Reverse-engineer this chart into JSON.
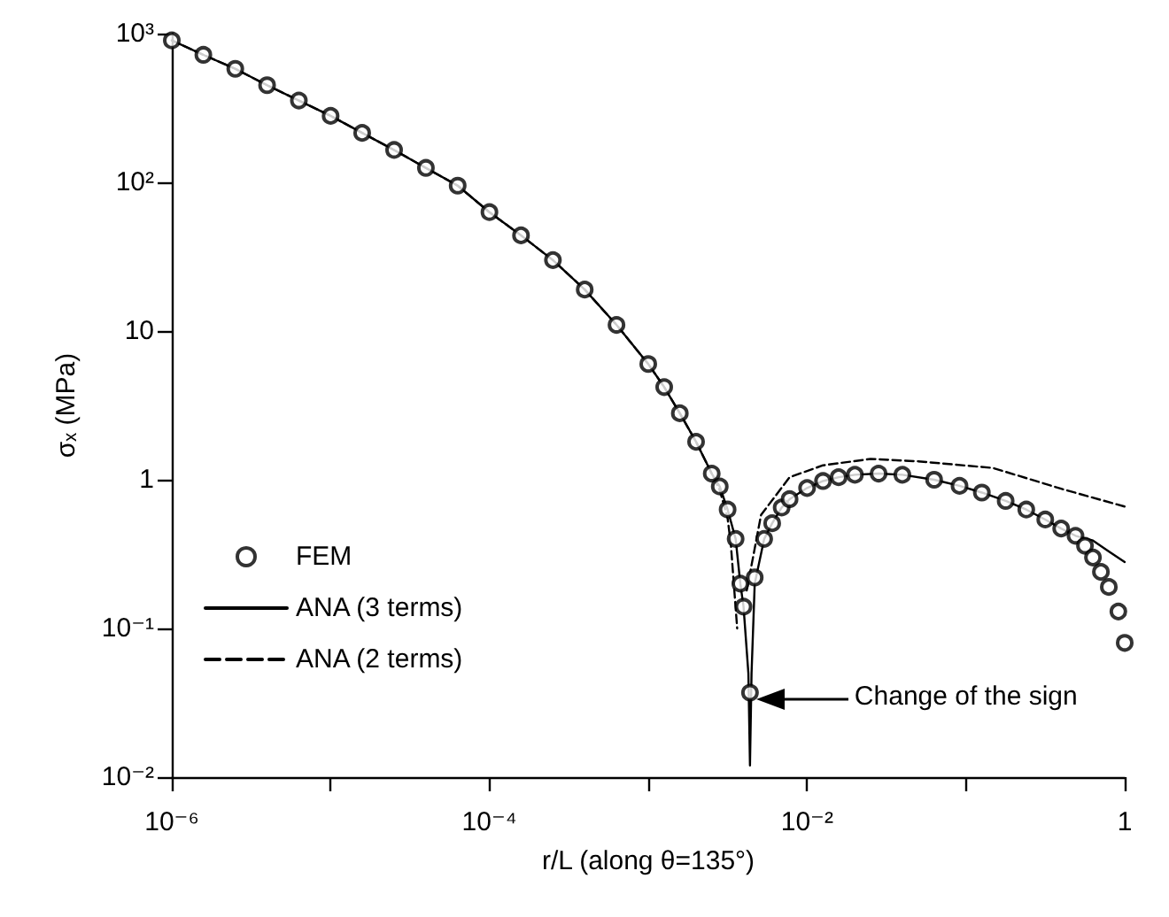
{
  "chart_data": {
    "type": "line",
    "xlabel": "r/L (along θ=135°)",
    "ylabel": "σₓ (MPa)",
    "log": "xy",
    "xlim": [
      1e-06,
      1
    ],
    "ylim": [
      0.01,
      1000
    ],
    "xticks": [
      {
        "value": 1e-06,
        "label": "10⁻⁶"
      },
      {
        "value": 1e-05,
        "label": null
      },
      {
        "value": 0.0001,
        "label": "10⁻⁴"
      },
      {
        "value": 0.001,
        "label": null
      },
      {
        "value": 0.01,
        "label": "10⁻²"
      },
      {
        "value": 0.1,
        "label": null
      },
      1
    ],
    "yticks": [
      {
        "value": 0.01,
        "label": "10⁻²"
      },
      {
        "value": 0.1,
        "label": "10⁻¹"
      },
      1,
      10,
      {
        "value": 100,
        "label": "10²"
      },
      {
        "value": 1000,
        "label": "10³"
      }
    ],
    "grid": false,
    "legend": "bottom left",
    "annotations": [
      "Change of the sign"
    ],
    "series": [
      {
        "name": "FEM",
        "type": "scatter",
        "marker": "circle",
        "color": "#000000",
        "x": [
          1e-06,
          1.58e-06,
          2.51e-06,
          3.98e-06,
          6.31e-06,
          1e-05,
          1.58e-05,
          2.51e-05,
          3.98e-05,
          6.31e-05,
          0.0001,
          0.000158,
          0.000251,
          0.000398,
          0.000631,
          0.001,
          0.00126,
          0.00158,
          0.002,
          0.00251,
          0.00282,
          0.00316,
          0.00355,
          0.0038,
          0.00398,
          0.00437,
          0.00468,
          0.00537,
          0.00603,
          0.00692,
          0.00776,
          0.01,
          0.0126,
          0.0158,
          0.02,
          0.0282,
          0.0398,
          0.0631,
          0.0912,
          0.126,
          0.178,
          0.24,
          0.316,
          0.398,
          0.49,
          0.562,
          0.631,
          0.708,
          0.794,
          0.912,
          1
        ],
        "values": [
          900,
          720,
          580,
          450,
          355,
          280,
          215,
          165,
          125,
          95,
          63,
          44,
          30,
          19,
          11,
          6,
          4.2,
          2.8,
          1.8,
          1.1,
          0.9,
          0.63,
          0.4,
          0.2,
          0.14,
          0.037,
          0.22,
          0.4,
          0.51,
          0.65,
          0.74,
          0.88,
          0.98,
          1.04,
          1.08,
          1.1,
          1.08,
          1,
          0.91,
          0.82,
          0.72,
          0.63,
          0.54,
          0.47,
          0.42,
          0.36,
          0.3,
          0.24,
          0.19,
          0.13,
          0.08
        ]
      },
      {
        "name": "ANA (3 terms)",
        "marker": "none",
        "line_style": "solid",
        "color": "#000000",
        "x": [
          1e-06,
          1.58e-06,
          2.51e-06,
          3.98e-06,
          6.31e-06,
          1e-05,
          1.58e-05,
          2.51e-05,
          3.98e-05,
          6.31e-05,
          0.0001,
          0.000158,
          0.000251,
          0.000398,
          0.000631,
          0.001,
          0.00126,
          0.00158,
          0.002,
          0.00251,
          0.00282,
          0.00316,
          0.00355,
          0.0038,
          0.00398,
          0.00427,
          0.00437,
          0.00447,
          0.00468,
          0.00537,
          0.00603,
          0.00692,
          0.00776,
          0.01,
          0.0126,
          0.0158,
          0.02,
          0.0282,
          0.0398,
          0.0631,
          0.0912,
          0.126,
          0.178,
          0.24,
          0.316,
          0.398,
          0.49,
          0.631,
          0.794,
          1
        ],
        "values": [
          900,
          720,
          580,
          450,
          355,
          280,
          215,
          165,
          125,
          95,
          63,
          44,
          30,
          19,
          11,
          6,
          4.2,
          2.8,
          1.8,
          1.1,
          0.9,
          0.63,
          0.4,
          0.2,
          0.14,
          0.05,
          0.012,
          0.05,
          0.2,
          0.4,
          0.51,
          0.65,
          0.74,
          0.88,
          0.98,
          1.04,
          1.08,
          1.1,
          1.08,
          1,
          0.91,
          0.82,
          0.72,
          0.63,
          0.54,
          0.47,
          0.42,
          0.39,
          0.33,
          0.28
        ]
      },
      {
        "name": "ANA (2 terms)",
        "marker": "none",
        "line_style": "dashed",
        "color": "#000000",
        "x": [
          1e-06,
          1.58e-06,
          2.51e-06,
          3.98e-06,
          6.31e-06,
          1e-05,
          1.58e-05,
          2.51e-05,
          3.98e-05,
          6.31e-05,
          0.0001,
          0.000158,
          0.000251,
          0.000398,
          0.000631,
          0.001,
          0.00126,
          0.00158,
          0.002,
          0.00251,
          0.00282,
          0.00316,
          0.00331,
          0.00363,
          0.0039,
          0.00417,
          0.00513,
          0.00776,
          0.0126,
          0.0251,
          0.0501,
          0.148,
          0.398,
          1
        ],
        "values": [
          900,
          720,
          580,
          450,
          355,
          280,
          215,
          165,
          125,
          95,
          63,
          44,
          30,
          19,
          11,
          6,
          4.2,
          2.8,
          1.8,
          1.1,
          0.85,
          0.55,
          0.37,
          0.1,
          null,
          0.18,
          0.58,
          1.04,
          1.25,
          1.38,
          1.33,
          1.2,
          0.87,
          0.66
        ]
      }
    ]
  }
}
